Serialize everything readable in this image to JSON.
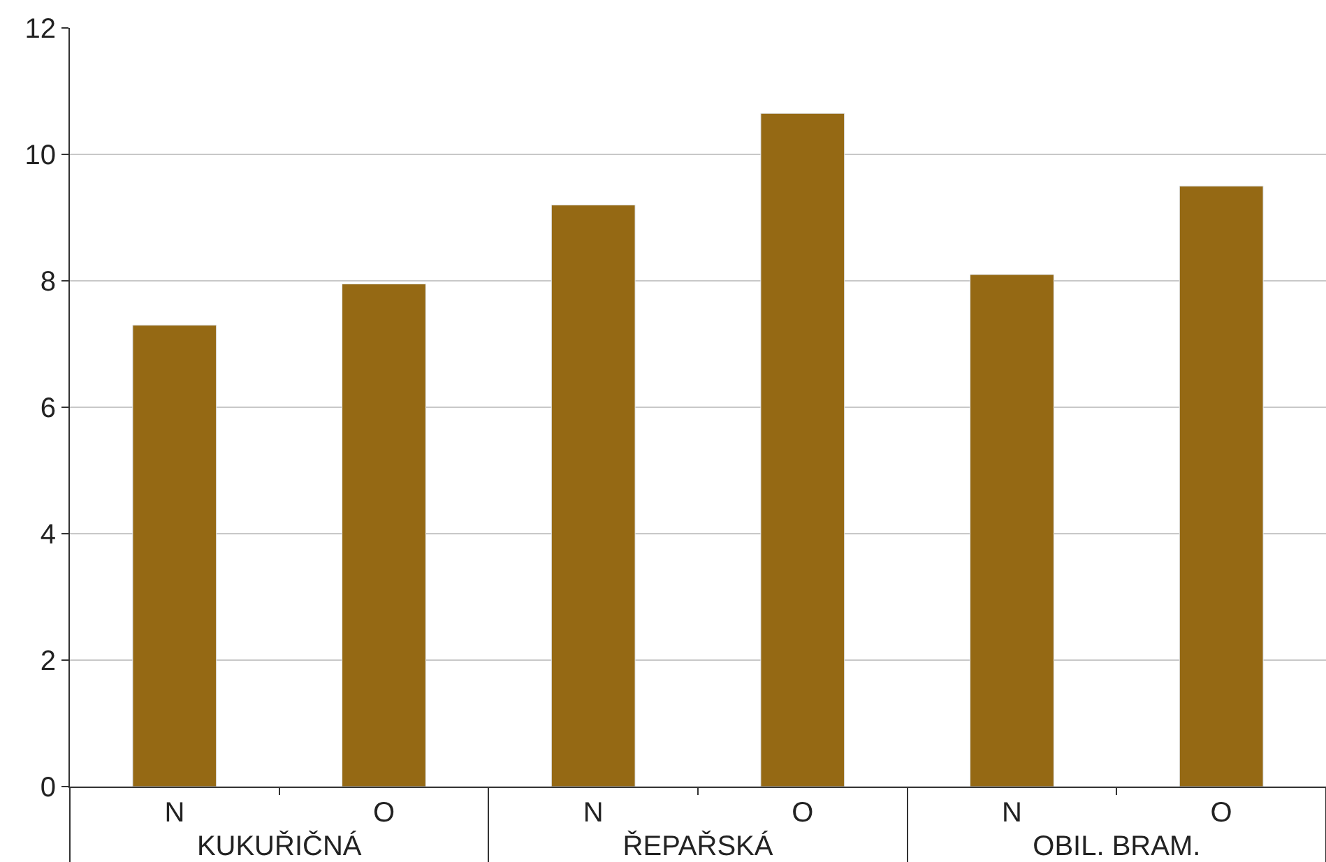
{
  "chart_data": {
    "type": "bar",
    "categories": [
      "N",
      "O",
      "N",
      "O",
      "N",
      "O"
    ],
    "values": [
      7.3,
      7.95,
      9.2,
      10.65,
      8.1,
      9.5
    ],
    "color": "#956914",
    "annotations": [
      "KUKUŘIČNÁ",
      "ŘEPAŘSKÁ",
      "OBIL. BRAM."
    ],
    "ylim": [
      0,
      12
    ],
    "yticks": [
      0,
      2,
      4,
      6,
      8,
      10,
      12
    ],
    "grid": "y",
    "legend": false
  }
}
